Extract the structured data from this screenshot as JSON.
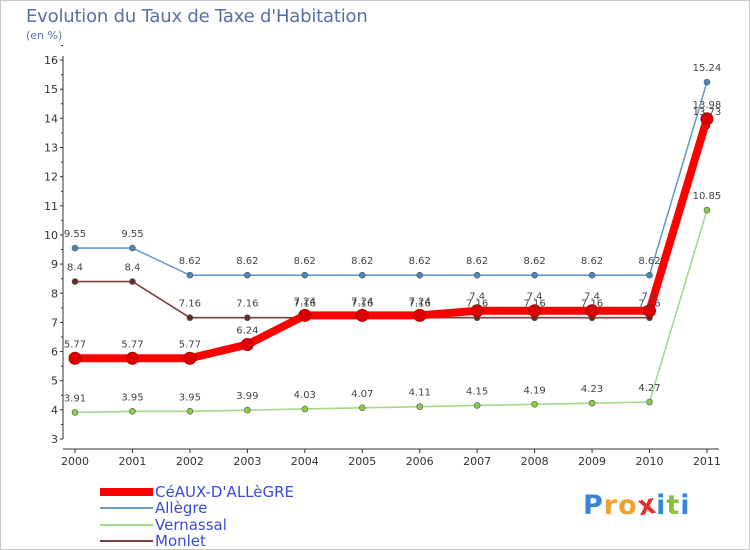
{
  "header": {
    "title": "Evolution du Taux de Taxe d'Habitation",
    "subtitle": "(en %)"
  },
  "chart_data": {
    "type": "line",
    "title": "Evolution du Taux de Taxe d'Habitation",
    "ylabel": "(en %)",
    "xlabel": "",
    "ylim": [
      3,
      16
    ],
    "yticks": [
      3,
      4,
      5,
      6,
      7,
      8,
      9,
      10,
      11,
      12,
      13,
      14,
      15,
      16
    ],
    "categories": [
      "2000",
      "2001",
      "2002",
      "2003",
      "2004",
      "2005",
      "2006",
      "2007",
      "2008",
      "2009",
      "2010",
      "2011"
    ],
    "grid": false,
    "legend_position": "bottom-left",
    "series": [
      {
        "name": "Allègre",
        "color": "#6a9cc9",
        "marker": "#4a86c0",
        "values": [
          9.55,
          9.55,
          8.62,
          8.62,
          8.62,
          8.62,
          8.62,
          8.62,
          8.62,
          8.62,
          8.62,
          15.24
        ],
        "labels": [
          "9.55",
          "9.55",
          "8.62",
          "8.62",
          "8.62",
          "8.62",
          "8.62",
          "8.62",
          "8.62",
          "8.62",
          "8.62",
          "15.24"
        ]
      },
      {
        "name": "Vernassal",
        "color": "#a6d88a",
        "marker": "#88cc44",
        "values": [
          3.91,
          3.95,
          3.95,
          3.99,
          4.03,
          4.07,
          4.11,
          4.15,
          4.19,
          4.23,
          4.27,
          10.85
        ],
        "labels": [
          "3.91",
          "3.95",
          "3.95",
          "3.99",
          "4.03",
          "4.07",
          "4.11",
          "4.15",
          "4.19",
          "4.23",
          "4.27",
          "10.85"
        ]
      },
      {
        "name": "Monlet",
        "color": "#7a3f3f",
        "marker": "#6a2a2a",
        "values": [
          8.4,
          8.4,
          7.16,
          7.16,
          7.16,
          7.16,
          7.16,
          7.16,
          7.16,
          7.16,
          7.16,
          13.73
        ],
        "labels": [
          "8.4",
          "8.4",
          "7.16",
          "7.16",
          "7.16",
          "7.16",
          "7.16",
          "7.16",
          "7.16",
          "7.16",
          "7.16",
          "13.73"
        ]
      },
      {
        "name": "CéAUX-D'ALLèGRE",
        "color": "#ff0000",
        "marker": "#dd0000",
        "values": [
          5.77,
          5.77,
          5.77,
          6.24,
          7.24,
          7.24,
          7.24,
          7.4,
          7.4,
          7.4,
          7.4,
          13.98
        ],
        "labels": [
          "5.77",
          "5.77",
          "5.77",
          "6.24",
          "7.24",
          "7.24",
          "7.24",
          "7.4",
          "7.4",
          "7.4",
          "7.4",
          "13.98"
        ]
      }
    ]
  },
  "legend": [
    {
      "label": "CéAUX-D'ALLèGRE",
      "color": "#ff0000"
    },
    {
      "label": "Allègre",
      "color": "#6a9cc9"
    },
    {
      "label": "Vernassal",
      "color": "#a6d88a"
    },
    {
      "label": "Monlet",
      "color": "#7a3f3f"
    }
  ],
  "logo": {
    "letters": [
      "P",
      "r",
      "o",
      "x",
      "i",
      "t",
      "i"
    ],
    "colors": [
      "#3a86d4",
      "#f0a030",
      "#f0a030",
      "#e03030",
      "#3a86d4",
      "#88c040",
      "#3a86d4"
    ]
  }
}
